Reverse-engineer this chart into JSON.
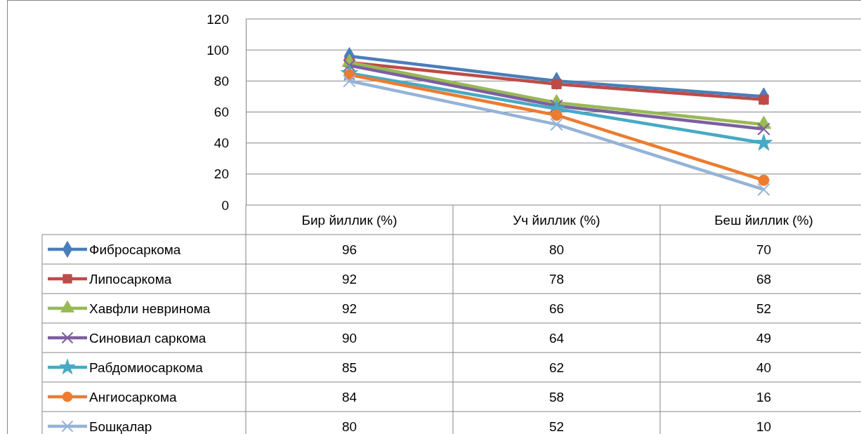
{
  "chart_data": {
    "type": "line",
    "categories": [
      "Бир йиллик (%)",
      "Уч йиллик (%)",
      "Беш йиллик (%)"
    ],
    "series": [
      {
        "name": "Фибросаркома",
        "color": "#4a7ebb",
        "marker": "diamond",
        "values": [
          96,
          80,
          70
        ]
      },
      {
        "name": "Липосаркома",
        "color": "#be4b48",
        "marker": "square",
        "values": [
          92,
          78,
          68
        ]
      },
      {
        "name": "Хавфли невринома",
        "color": "#98b954",
        "marker": "triangle",
        "values": [
          92,
          66,
          52
        ]
      },
      {
        "name": "Синовиал саркома",
        "color": "#7d5fa0",
        "marker": "cross",
        "values": [
          90,
          64,
          49
        ]
      },
      {
        "name": "Рабдомиосаркома",
        "color": "#46aac5",
        "marker": "star",
        "values": [
          85,
          62,
          40
        ]
      },
      {
        "name": "Ангиосаркома",
        "color": "#ec7c30",
        "marker": "circle",
        "values": [
          84,
          58,
          16
        ]
      },
      {
        "name": "Бошқалар",
        "color": "#95b3d7",
        "marker": "cross",
        "values": [
          80,
          52,
          10
        ]
      }
    ],
    "ylim": [
      0,
      120
    ],
    "yticks": [
      0,
      20,
      40,
      60,
      80,
      100,
      120
    ],
    "grid": "y",
    "legend": "bottom",
    "data_labels": true
  }
}
